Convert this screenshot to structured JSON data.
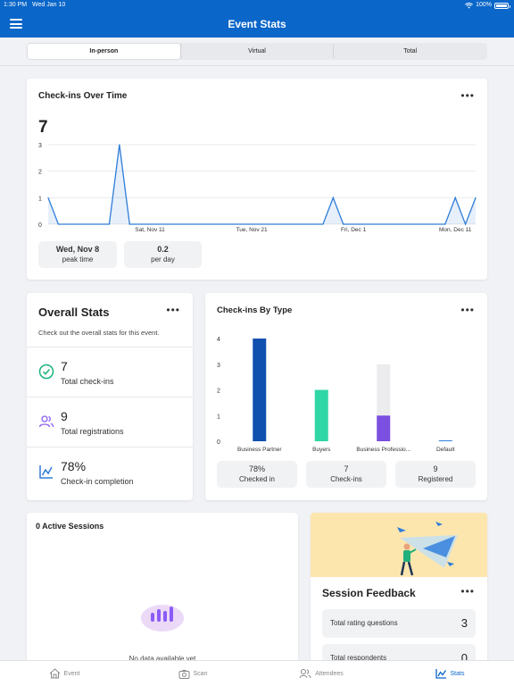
{
  "status_bar": {
    "time": "1:30 PM",
    "date": "Wed Jan 10",
    "battery": "100%"
  },
  "nav": {
    "title": "Event Stats",
    "menu_icon": "hamburger-menu-icon"
  },
  "segments": [
    {
      "label": "In-person",
      "active": true
    },
    {
      "label": "Virtual",
      "active": false
    },
    {
      "label": "Total",
      "active": false
    }
  ],
  "checkins_over_time": {
    "title": "Check-ins Over Time",
    "total": "7",
    "peak": {
      "value": "Wed, Nov 8",
      "label": "peak time"
    },
    "rate": {
      "value": "0.2",
      "label": "per day"
    },
    "chart_data": {
      "type": "area",
      "x_ticks": [
        "Sat, Nov 11",
        "Tue, Nov 21",
        "Fri, Dec 1",
        "Mon, Dec 11"
      ],
      "y_ticks": [
        "0",
        "1",
        "2",
        "3"
      ],
      "ylim": [
        0,
        3
      ],
      "x": [
        "Nov 1",
        "Nov 2",
        "Nov 7",
        "Nov 8",
        "Nov 9",
        "Nov 28",
        "Nov 29",
        "Nov 30",
        "Dec 10",
        "Dec 11",
        "Dec 12",
        "Dec 13"
      ],
      "values": [
        1,
        0,
        0,
        3,
        0,
        0,
        1,
        0,
        0,
        1,
        0,
        1
      ],
      "color": "#2f7dd8"
    }
  },
  "overall_stats": {
    "title": "Overall Stats",
    "description": "Check out the overall stats for this event.",
    "rows": [
      {
        "value": "7",
        "label": "Total check-ins",
        "icon": "check-circle-icon",
        "color": "#19b37a"
      },
      {
        "value": "9",
        "label": "Total registrations",
        "icon": "people-icon",
        "color": "#8b5cf6"
      },
      {
        "value": "78%",
        "label": "Check-in completion",
        "icon": "chart-icon",
        "color": "#2f7dd8"
      }
    ]
  },
  "checkins_by_type": {
    "title": "Check-ins By Type",
    "chart_data": {
      "type": "bar",
      "categories": [
        "Business Partner",
        "Buyers",
        "Business Professio...",
        "Default"
      ],
      "checked_in": [
        4,
        2,
        1,
        0
      ],
      "registered": [
        4,
        2,
        3,
        0
      ],
      "colors": [
        "#1250b0",
        "#2fd6a6",
        "#7b4fe0",
        "#2f7dd8"
      ],
      "y_ticks": [
        "0",
        "1",
        "2",
        "3",
        "4"
      ],
      "ylim": [
        0,
        4
      ]
    },
    "summary": [
      {
        "value": "78%",
        "label": "Checked in"
      },
      {
        "value": "7",
        "label": "Check-ins"
      },
      {
        "value": "9",
        "label": "Registered"
      }
    ]
  },
  "active_sessions": {
    "title": "0 Active Sessions",
    "empty_text": "No data available yet"
  },
  "session_feedback": {
    "title": "Session Feedback",
    "rows": [
      {
        "label": "Total rating questions",
        "value": "3"
      },
      {
        "label": "Total respondents",
        "value": "0"
      }
    ]
  },
  "tabs": [
    {
      "label": "Event",
      "icon": "home-icon",
      "active": false
    },
    {
      "label": "Scan",
      "icon": "camera-icon",
      "active": false
    },
    {
      "label": "Attendees",
      "icon": "people-icon",
      "active": false
    },
    {
      "label": "Stats",
      "icon": "stats-icon",
      "active": true
    }
  ]
}
